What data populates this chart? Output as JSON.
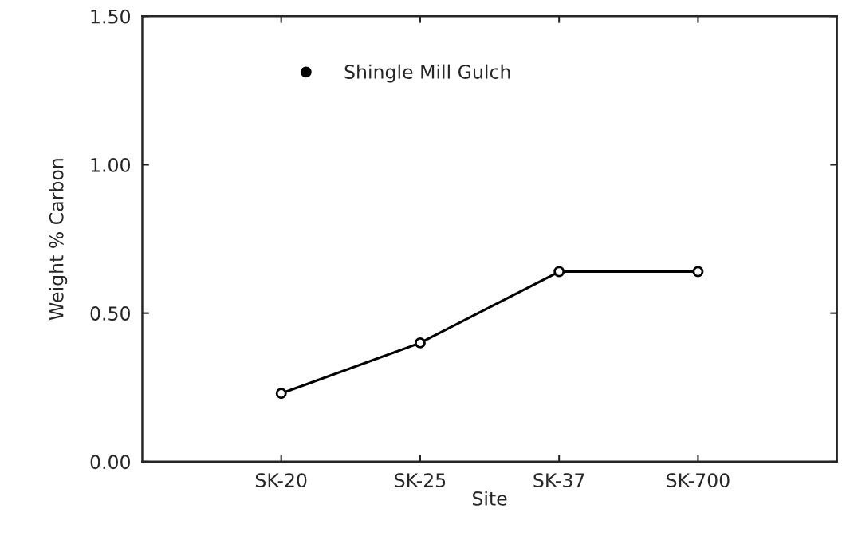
{
  "chart_data": {
    "type": "line",
    "xlabel": "Site",
    "ylabel": "Weight % Carbon",
    "categories": [
      "SK-20",
      "SK-25",
      "SK-37",
      "SK-700"
    ],
    "series": [
      {
        "name": "Shingle Mill Gulch",
        "color": "#000000",
        "values": [
          0.23,
          0.4,
          0.64,
          0.64
        ]
      }
    ],
    "ylim": [
      0,
      1.5
    ],
    "yticks": [
      {
        "value": 0,
        "label": "0.00"
      },
      {
        "value": 0.5,
        "label": "0.50"
      },
      {
        "value": 1.0,
        "label": "1.00"
      },
      {
        "value": 1.5,
        "label": "1.50"
      }
    ],
    "marker": "circle",
    "line_style": "solid",
    "legend": "top",
    "grid": false
  }
}
